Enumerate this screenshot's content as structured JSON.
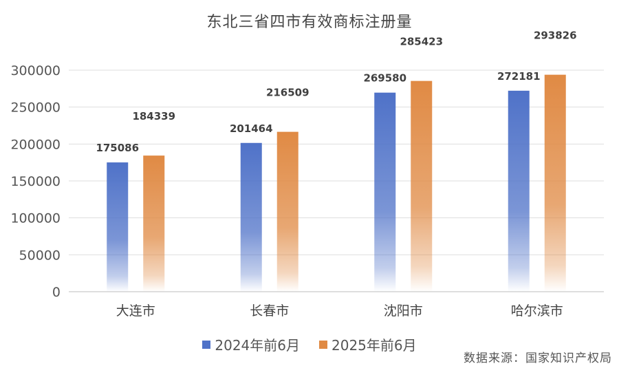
{
  "chart_data": {
    "type": "bar",
    "title": "东北三省四市有效商标注册量",
    "categories": [
      "大连市",
      "长春市",
      "沈阳市",
      "哈尔滨市"
    ],
    "series": [
      {
        "name": "2024年前6月",
        "values": [
          175086,
          201464,
          269580,
          272181
        ],
        "color": "#4f72c8"
      },
      {
        "name": "2025年前6月",
        "values": [
          184339,
          216509,
          285423,
          293826
        ],
        "color": "#e08a44"
      }
    ],
    "ylim": [
      0,
      300000
    ],
    "yticks": [
      0,
      50000,
      100000,
      150000,
      200000,
      250000,
      300000
    ],
    "xlabel": "",
    "ylabel": "",
    "grid": true,
    "legend": "bottom-center",
    "source": "数据来源：国家知识产权局"
  }
}
